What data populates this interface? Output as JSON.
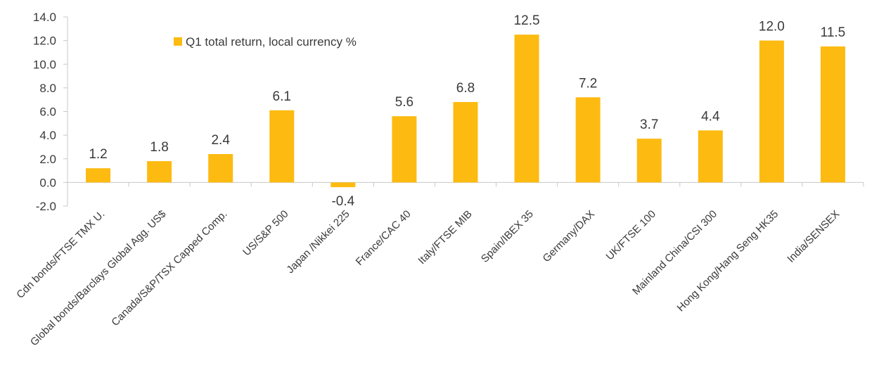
{
  "chart_data": {
    "type": "bar",
    "categories": [
      "Cdn bonds/FTSE TMX U.",
      "Global bonds/Barclays Global Agg. US$",
      "Canada/S&P/TSX Capped Comp.",
      "US/S&P 500",
      "Japan /Nikkei 225",
      "France/CAC 40",
      "Italy/FTSE MIB",
      "Spain/IBEX 35",
      "Germany/DAX",
      "UK/FTSE 100",
      "Mainland China/CSI 300",
      "Hong Kong/Hang Seng HK35",
      "India/SENSEX"
    ],
    "series": [
      {
        "name": "Q1 total return, local currency %",
        "values": [
          1.2,
          1.8,
          2.4,
          6.1,
          -0.4,
          5.6,
          6.8,
          12.5,
          7.2,
          3.7,
          4.4,
          12.0,
          11.5
        ],
        "labels": [
          "1.2",
          "1.8",
          "2.4",
          "6.1",
          "-0.4",
          "5.6",
          "6.8",
          "12.5",
          "7.2",
          "3.7",
          "4.4",
          "12.0",
          "11.5"
        ]
      }
    ],
    "ylim": [
      -2.0,
      14.0
    ],
    "yticks": [
      "-2.0",
      "0.0",
      "2.0",
      "4.0",
      "6.0",
      "8.0",
      "10.0",
      "12.0",
      "14.0"
    ],
    "ytick_values": [
      -2,
      0,
      2,
      4,
      6,
      8,
      10,
      12,
      14
    ],
    "title": "",
    "xlabel": "",
    "ylabel": "",
    "legend_position": "top-left",
    "grid": false,
    "bar_color": "#FDBB11",
    "axis_color": "#c8c8c8",
    "text_color": "#3a3a3a"
  }
}
